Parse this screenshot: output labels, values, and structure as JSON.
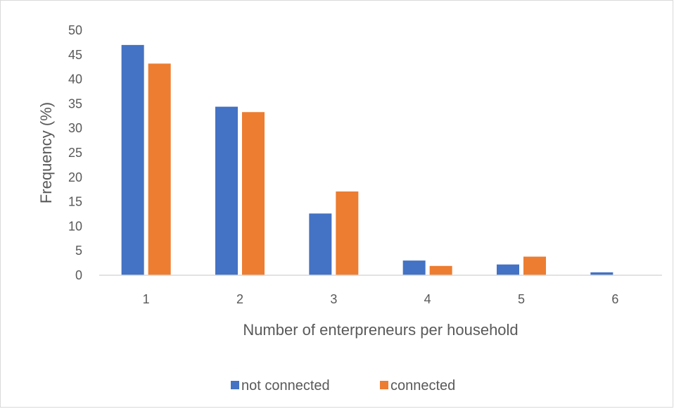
{
  "chart_data": {
    "type": "bar",
    "categories": [
      "1",
      "2",
      "3",
      "4",
      "5",
      "6"
    ],
    "series": [
      {
        "name": "not connected",
        "color": "#4472C4",
        "values": [
          47.0,
          34.4,
          12.6,
          3.0,
          2.2,
          0.6
        ]
      },
      {
        "name": "connected",
        "color": "#ED7D31",
        "values": [
          43.2,
          33.3,
          17.1,
          1.9,
          3.8,
          0.0
        ]
      }
    ],
    "xlabel": "Number of enterpreneurs per household",
    "ylabel": "Frequency (%)",
    "ylim": [
      0,
      50
    ],
    "yticks": [
      "0",
      "5",
      "10",
      "15",
      "20",
      "25",
      "30",
      "35",
      "40",
      "45",
      "50"
    ],
    "grid": false,
    "legend_position": "bottom"
  }
}
